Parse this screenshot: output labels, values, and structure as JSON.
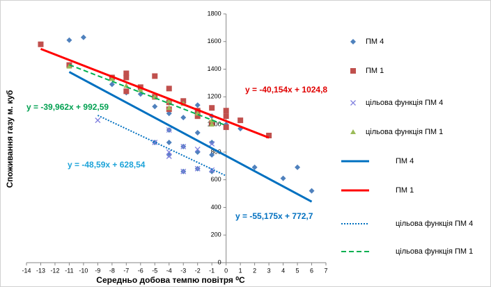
{
  "chart_data": {
    "type": "scatter",
    "x_label": "Середньо добова темпю повітря ⁰C",
    "y_label": "Споживання газу м. куб",
    "xlim": [
      -14,
      7
    ],
    "xticks": [
      -14,
      -13,
      -12,
      -11,
      -10,
      -9,
      -8,
      -7,
      -6,
      -5,
      -4,
      -3,
      -2,
      -1,
      0,
      1,
      2,
      3,
      4,
      5,
      6,
      7
    ],
    "ylim": [
      0,
      1800
    ],
    "yticks": [
      0,
      200,
      400,
      600,
      800,
      1000,
      1200,
      1400,
      1600,
      1800
    ],
    "series": [
      {
        "name": "ПМ 4",
        "color": "#4f81bd",
        "marker": "diamond",
        "x": [
          -11,
          -10,
          -8,
          -7,
          -6,
          -5,
          -5,
          -4,
          -4,
          -4,
          -4,
          -3,
          -3,
          -3,
          -2,
          -2,
          -2,
          -2,
          -1,
          -1,
          -1,
          -1,
          0,
          1,
          2,
          4,
          5,
          6
        ],
        "values": [
          1610,
          1630,
          1290,
          1230,
          1220,
          1130,
          870,
          1080,
          960,
          870,
          780,
          1050,
          840,
          660,
          1140,
          940,
          800,
          680,
          1060,
          870,
          780,
          660,
          1000,
          970,
          690,
          610,
          690,
          520
        ]
      },
      {
        "name": "ПМ 1",
        "color": "#c0504d",
        "marker": "square",
        "x": [
          -13,
          -11,
          -8,
          -7,
          -7,
          -7,
          -6,
          -5,
          -5,
          -4,
          -4,
          -4,
          -3,
          -2,
          -2,
          -1,
          -1,
          0,
          0,
          0,
          1,
          3
        ],
        "values": [
          1580,
          1430,
          1340,
          1370,
          1340,
          1240,
          1270,
          1350,
          1200,
          1260,
          1160,
          1110,
          1170,
          1100,
          1060,
          1120,
          1010,
          1100,
          1060,
          980,
          1030,
          920
        ]
      },
      {
        "name": "цільова функція ПМ 4",
        "color": "#7f7fdf",
        "marker": "x",
        "x": [
          -9,
          -5,
          -4,
          -4,
          -4,
          -3,
          -3,
          -2,
          -2,
          -1,
          -1
        ],
        "values": [
          1030,
          870,
          960,
          800,
          770,
          840,
          660,
          820,
          680,
          860,
          670
        ]
      },
      {
        "name": "цільова функція ПМ 1",
        "color": "#9bbb59",
        "marker": "triangle",
        "x": [
          -11,
          -8,
          -7,
          -6,
          -5,
          -4,
          -4,
          -3,
          -2,
          -1,
          -1
        ],
        "values": [
          1420,
          1330,
          1280,
          1250,
          1200,
          1170,
          1120,
          1150,
          1080,
          1030,
          1000
        ]
      }
    ],
    "trendlines": [
      {
        "name": "ПМ 4",
        "color": "#0070c0",
        "style": "solid",
        "equation": "y = -55,175x + 772,7",
        "label_color": "#0070c0",
        "slope": -55.175,
        "intercept": 772.7,
        "xrange": [
          -11,
          6
        ]
      },
      {
        "name": "ПМ 1",
        "color": "#ff0000",
        "style": "solid",
        "equation": "y = -40,154x + 1024,8",
        "label_color": "#e00000",
        "slope": -40.154,
        "intercept": 1024.8,
        "xrange": [
          -13,
          3
        ]
      },
      {
        "name": "цільова функція ПМ 4",
        "color": "#0070c0",
        "style": "dotted",
        "equation": "y = -48,59x + 628,54",
        "label_color": "#1ca3d9",
        "slope": -48.59,
        "intercept": 628.54,
        "xrange": [
          -9,
          0
        ]
      },
      {
        "name": "цільова функція ПМ 1",
        "color": "#00b050",
        "style": "dashed",
        "equation": "y = -39,962x + 992,59",
        "label_color": "#00a050",
        "slope": -39.962,
        "intercept": 992.59,
        "xrange": [
          -11,
          0
        ]
      }
    ]
  }
}
